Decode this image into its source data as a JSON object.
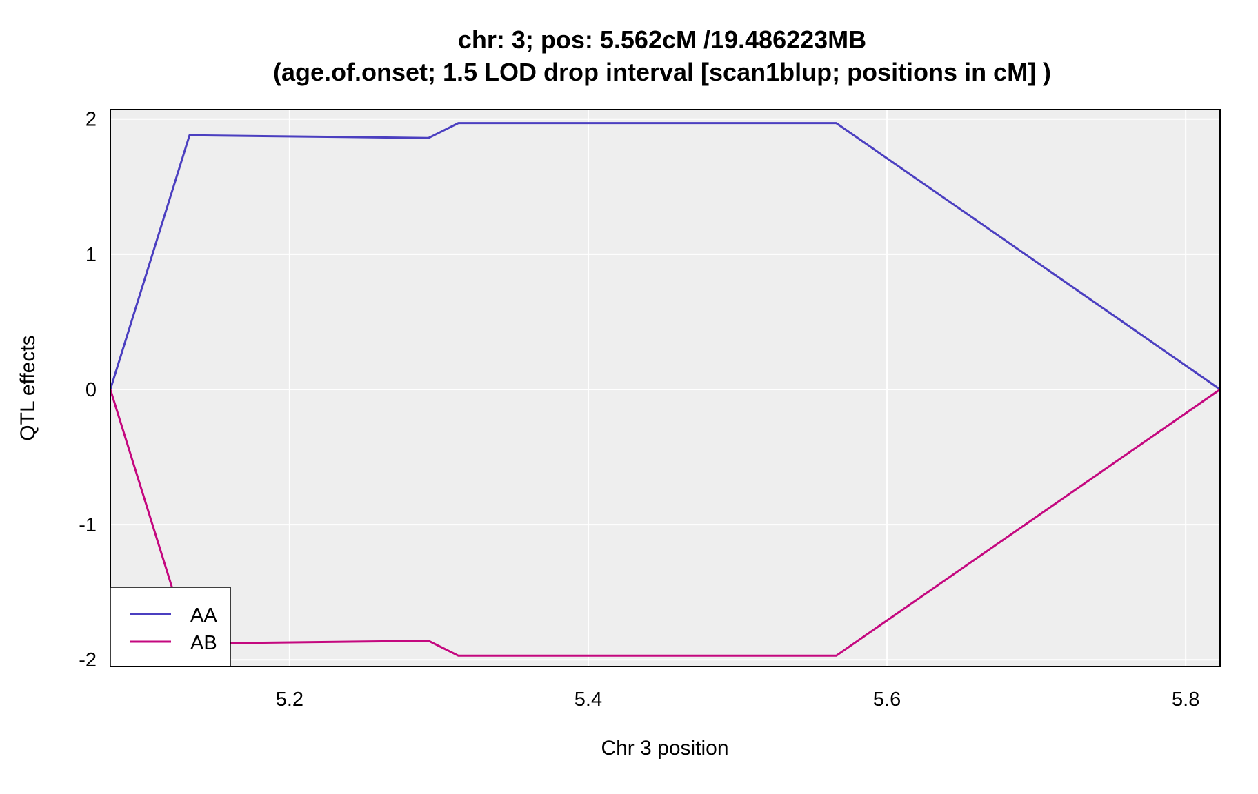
{
  "chart_data": {
    "type": "line",
    "title": "chr: 3; pos: 5.562cM /19.486223MB",
    "subtitle": "(age.of.onset; 1.5 LOD drop interval [scan1blup; positions in cM] )",
    "xlabel": "Chr 3 position",
    "ylabel": "QTL effects",
    "xlim": [
      5.08,
      5.823
    ],
    "ylim": [
      -2.05,
      2.07
    ],
    "xticks": [
      5.2,
      5.4,
      5.6,
      5.8
    ],
    "xtick_labels": [
      "5.2",
      "5.4",
      "5.6",
      "5.8"
    ],
    "yticks": [
      -2,
      -1,
      0,
      1,
      2
    ],
    "ytick_labels": [
      "-2",
      "-1",
      "0",
      "1",
      "2"
    ],
    "grid": true,
    "legend_placement": "bottom-left",
    "background_color": "#eeeeee",
    "grid_color": "#ffffff",
    "series": [
      {
        "name": "AA",
        "color": "#4b3fc0",
        "x": [
          5.08,
          5.133,
          5.293,
          5.313,
          5.566,
          5.823
        ],
        "y": [
          0,
          1.88,
          1.86,
          1.97,
          1.97,
          0
        ]
      },
      {
        "name": "AB",
        "color": "#c4087f",
        "x": [
          5.08,
          5.133,
          5.293,
          5.313,
          5.566,
          5.823
        ],
        "y": [
          0,
          -1.88,
          -1.86,
          -1.97,
          -1.97,
          0
        ]
      }
    ]
  }
}
